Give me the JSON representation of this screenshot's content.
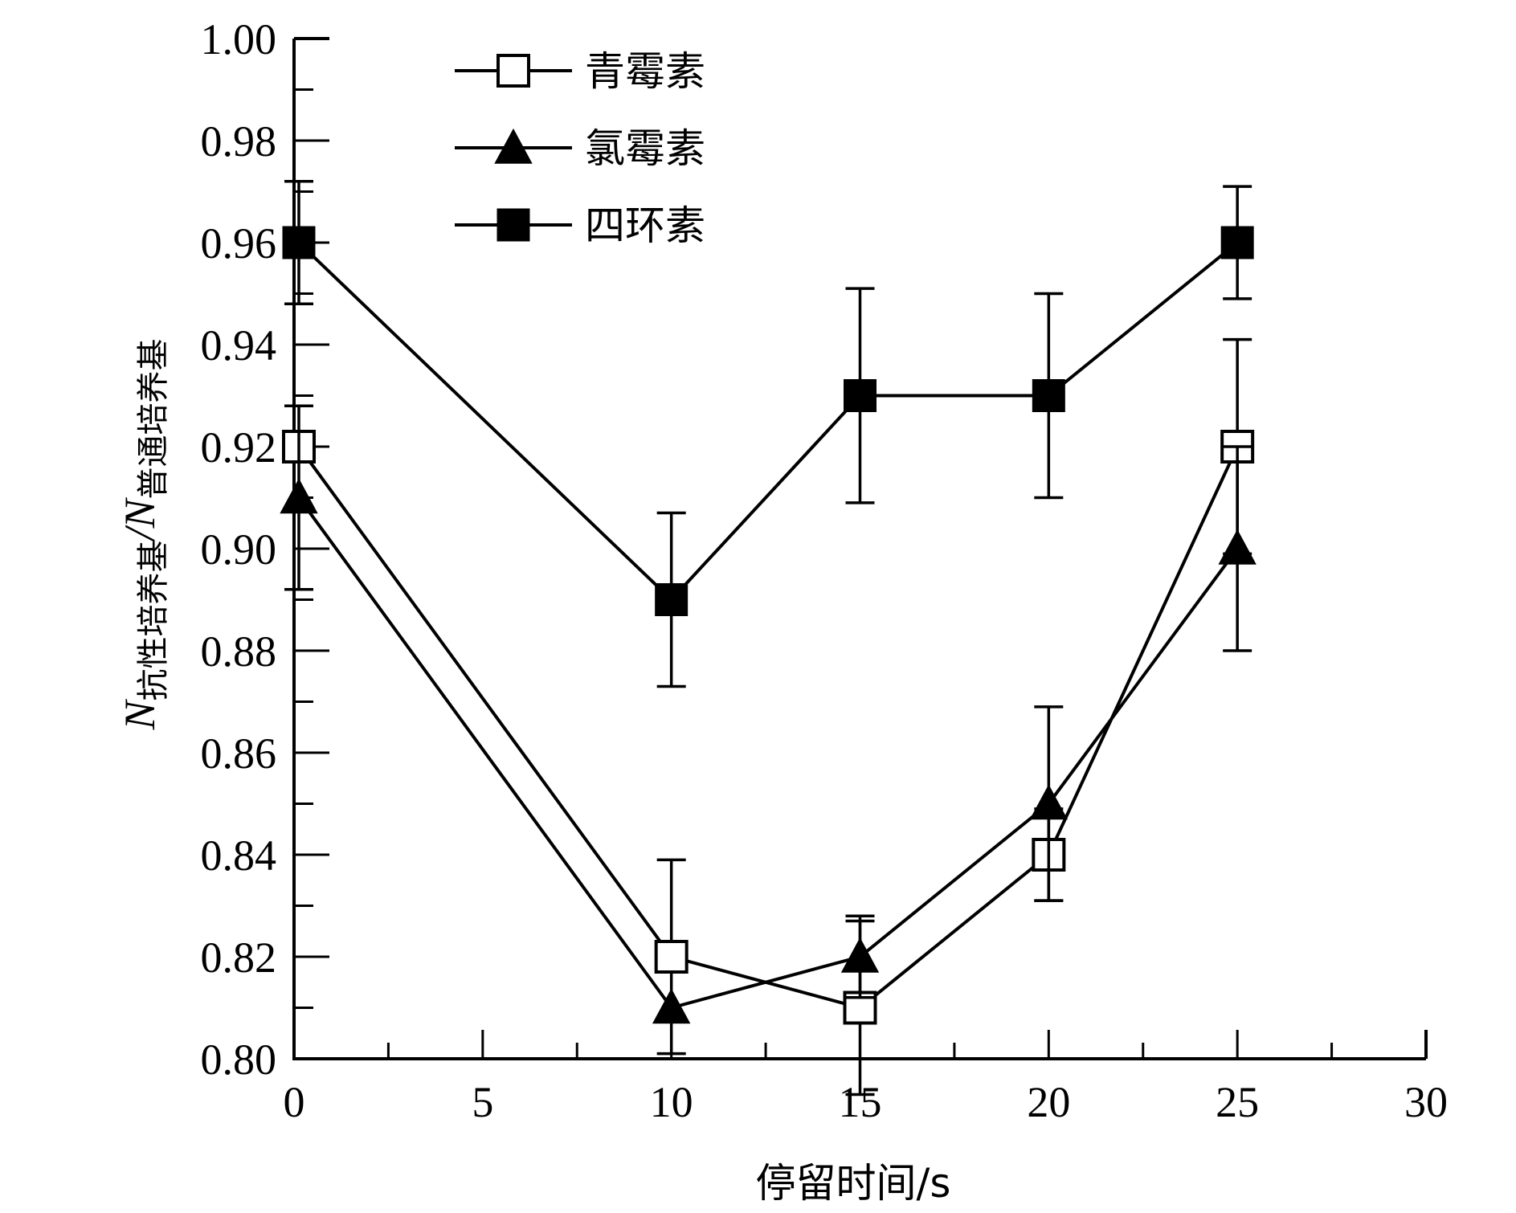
{
  "chart_data": {
    "type": "line",
    "title": "",
    "xlabel": "停留时间/s",
    "ylabel": {
      "n1": "N",
      "sub1": "抗性培养基",
      "slash": "/",
      "n2": "N",
      "sub2": "普通培养基"
    },
    "xlim": [
      0,
      30
    ],
    "ylim": [
      0.8,
      1.0
    ],
    "xticks": [
      "0",
      "5",
      "10",
      "15",
      "20",
      "25",
      "30"
    ],
    "yticks": [
      "0.80",
      "0.82",
      "0.84",
      "0.86",
      "0.88",
      "0.90",
      "0.92",
      "0.94",
      "0.96",
      "0.98",
      "1.00"
    ],
    "x": [
      0,
      10,
      15,
      20,
      25
    ],
    "series": [
      {
        "name": "青霉素",
        "marker": "open-square",
        "values": [
          0.92,
          0.82,
          0.81,
          0.84,
          0.92
        ],
        "errors": [
          0.0,
          0.019,
          0.017,
          0.009,
          0.021
        ]
      },
      {
        "name": "氯霉素",
        "marker": "filled-triangle",
        "values": [
          0.91,
          0.81,
          0.82,
          0.85,
          0.9
        ],
        "errors": [
          0.018,
          0.0,
          0.008,
          0.019,
          0.02
        ]
      },
      {
        "name": "四环素",
        "marker": "filled-square",
        "values": [
          0.96,
          0.89,
          0.93,
          0.93,
          0.96
        ],
        "errors": [
          0.012,
          0.017,
          0.021,
          0.02,
          0.011
        ]
      }
    ],
    "legend": "top-left",
    "grid": false,
    "color": "#000000"
  }
}
